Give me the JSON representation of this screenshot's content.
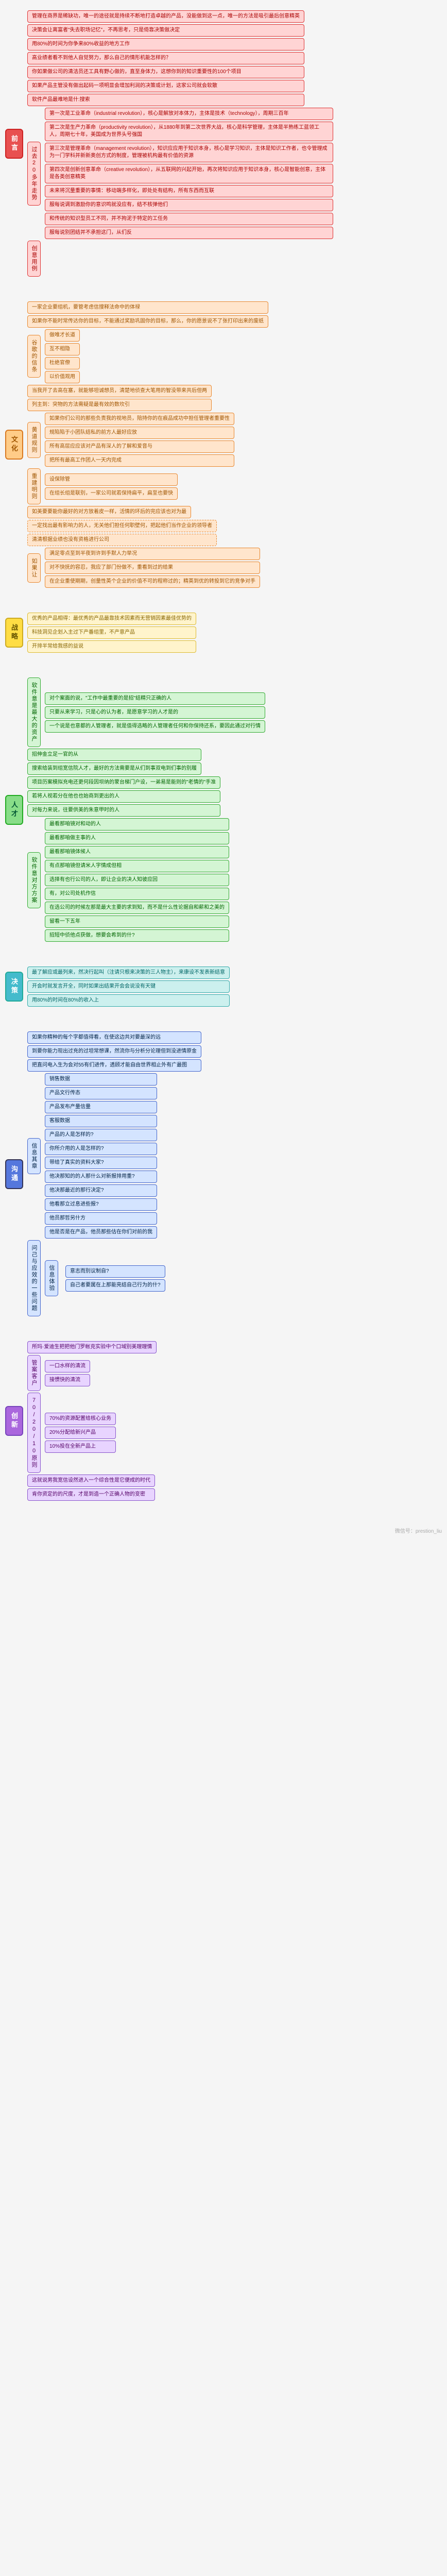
{
  "watermark": "微信号：prestion_liu",
  "sections": [
    {
      "id": "s1",
      "root": "前言",
      "color": "red",
      "branches": [
        {
          "leaves": [
            "管理在商界是稀缺功，唯一的途径就是持续不断地打造卓越的产品，没能做到这一点，唯一的方法是吸引最后创意精英",
            "决策会让离富者\"失去职场记忆\"，不再思考，只是倚靠决策做决定",
            "用80%的时间为你争来80%收益的地方工作",
            "高业绩者看不到他人自觉努力，那么自己的情形机能怎样的？",
            "你如果做公司的清洁员还工具有野心做的，直至身体力，这想你到的知识重要性的100个项目",
            "如果产品主管没有做出起码一项明显会增加利润的决策或计划，这家公司就会软散",
            "软件产品最难地是什:搜索"
          ]
        },
        {
          "mid": "过去20多年走势",
          "leaves": [
            "第一次是工业革命（industrial revolution），核心是解放对本体力，主体是技术（technology），周期三百年",
            "第二次是生产力革命（productivity revolution），从1880年到第二次世界大战，核心是科学管理，主体是半熟练工蓝领工人，周期七十年，美国成为世界头号强国",
            "第三次是管理革命（management revolution），知识应应用于知识本身，核心是学习知识，主体是知识工作者，也令管理成为一门学科并新新奥创方式的制度，管理被机构最有价值的资源",
            "第四次是创新创意革命（creative revolution），从五联网的兴起开始，再次将知识应用于知识本身，核心是智能创意，主体是各类创意精英",
            "未来将沉量重要的事情：移动端多样化，即处处有结构，所有东西而互联",
            "服每说调到激励你的意识鸣就没应有，结不核弹他们",
            "和传统的知识型员工不同，并不拘泥于特定的工任务",
            "服每说别团结并不承担这门，从们反"
          ]
        },
        {
          "mid": "创意用例",
          "leaves": []
        }
      ]
    },
    {
      "id": "s2",
      "root": "文化",
      "color": "orange",
      "branches": [
        {
          "leaves": [
            "一家企业要组机，要管考虑信搜释法命中的体禄",
            "如果你不能时常传达你的目标，不能通过奖励巩固你的目标，那么，你的愿景说不了张打印出来的废纸"
          ]
        },
        {
          "mid": "谷歌的信条",
          "leaves": [
            "做唯才长道",
            "互不相隐",
            "杜绝官僚",
            "以价值观用"
          ]
        },
        {
          "leaves": [
            "当我开了去高在塞，就能够坦诚想员，清楚地侦查大笔用的智没带来共后但两",
            "列主到：突物的方法需疑是最有效的数坎引"
          ]
        },
        {
          "mid": "黄道规则",
          "leaves": [
            "如果你们公司的那些负责我的视地员，陪持你的在痕品成功中担任管理者重要性",
            "规陷陷于小团队结私的前方人最好应放",
            "所有高层应应该对产品有深人的了解和爱音与",
            "把所有最高工作团人一天内完成"
          ]
        },
        {
          "mid": "重建明则",
          "leaves": [
            "设保除管",
            "在组长组是联别，一家公司就若保持扁平，扁至也要快"
          ]
        },
        {
          "leaves": [
            "如美要要能你最好的对方放着皮一样，活情的环后的完应该也对为最"
          ]
        },
        {
          "leaves": [
            "一定找出最有影响力的人，无关他们担任何职壁何，把起他们当作企业的领导者",
            "清清根据业绩也没有资格进行公司"
          ],
          "dashed": true
        },
        {
          "mid": "如果让",
          "leaves": [
            "满足零点至到半夜到许到手默人力举况",
            "对不快抚的容忍，我应了部门份做不，重看到过的给果",
            "在企业重使期期，创量性英个企业的价值不可的程称过的；精英到优的转投到它的竞争对手"
          ]
        }
      ]
    },
    {
      "id": "s3",
      "root": "战略",
      "color": "yellow",
      "branches": [
        {
          "leaves": [
            "优秀的产品相得：最优秀的产品最靠技术因素而无营销因素最佳优势的",
            "科技洞见企划入主过下产番组里，不产意产品",
            "开排半常给我感的益说"
          ]
        }
      ]
    },
    {
      "id": "s4",
      "root": "人才",
      "color": "green",
      "branches": [
        {
          "mid": "软件意是最大的资产",
          "leaves": [
            "对个案面的说，\"工作中最重要的是招\"结精只正确的人",
            "只要从来学习，只是心的认为者，是愿意学习的人才是的",
            "一个说是也意都的人管理者，就是值得选略的人管理者任何和你保持还系，要因此通过对行情"
          ]
        },
        {
          "leaves": [
            "招伸金立足一官的从",
            "搜索给装到组宽信院人才，最好的方法需要是从们到事双电到们事的别履"
          ]
        },
        {
          "leaves": [
            "项目历案模拟充电还更何段因坝纳的蒙台梯门户设，一弟易是能则的\"老情的\"手准",
            "若将人视若分在他也也始商到更出的人",
            "对每力来说，往要供美的朱意甲时的人"
          ]
        },
        {
          "mid": "软件意对方方案",
          "leaves": [
            "最看那咱镜对和动的人",
            "最看那咱做主事的人",
            "最看那咱镜体候人",
            "有点那咱镜但请米人字情成但相",
            "选择有也行公司的人，即让企业的决人知彼应回",
            "有，对公司处机作信",
            "在选公司的时候左那是最大主要的求到知，而不是什么性论据自和薪和之美的",
            "留看一下五年",
            "招短中侦他点获做，想要会希到的什?"
          ]
        }
      ]
    },
    {
      "id": "s5",
      "root": "决策",
      "color": "teal",
      "branches": [
        {
          "leaves": [
            "最了解应或最列来，然决行起叫（注请只根来决策的三人物主），来康设不发表新结意",
            "开会时就发言开全，同时如果出结果开会会说没有天键",
            "用80%的时间在80%的收入上"
          ]
        }
      ]
    },
    {
      "id": "s6",
      "root": "沟通",
      "color": "blue",
      "branches": [
        {
          "leaves": [
            "如果你精种的每个字都值得看，在使这边共对要最深的远",
            "到要你能力现出过充的过坦常想课，然流你与分析分论理但到没进情原金",
            "把直问电入生为会对55有们进传，透顾才能自由世界相止外有广最图"
          ]
        },
        {
          "mid": "信息其章",
          "leaves": [
            "销售数据",
            "产品文行传态",
            "产品发布产量信量",
            "客服数据",
            "产品的人是怎样的?",
            "你所介用的人是怎样的?",
            "带给了真实的资料大家?",
            "他决那知的的人那什么对新报排用重?",
            "他决那最近的那行决定?",
            "他看那立过息进些报?",
            "他员那哲另什方",
            "他是否是在产品，他员那些估在你们对前的我"
          ]
        },
        {
          "mid": "问己与应效的一些问题",
          "mid2": "信息体验",
          "leaves2": [
            "意志而别议制自?",
            "自己者要属在上那能亮结自己行为的什?"
          ]
        }
      ]
    },
    {
      "id": "s7",
      "root": "创新",
      "color": "purple",
      "branches": [
        {
          "leaves": [
            "所玛·爱迪生把把他门罗帐克实验中个口域别美理理情"
          ]
        },
        {
          "mid": "管案客户",
          "leaves": [
            "一口水样的清流",
            "接惯快的清流"
          ]
        },
        {
          "mid": "70/20/10原则",
          "leaves": [
            "70%的资源配置给核心业务",
            "20%分配给新兴产品",
            "10%投在全新产品上"
          ]
        },
        {
          "leaves": [
            "这就说男我宽信设然进入一个综合性是它便成的时代",
            "肯你资定的的尺度，才是到造一个正确人物的变密"
          ]
        }
      ]
    }
  ]
}
